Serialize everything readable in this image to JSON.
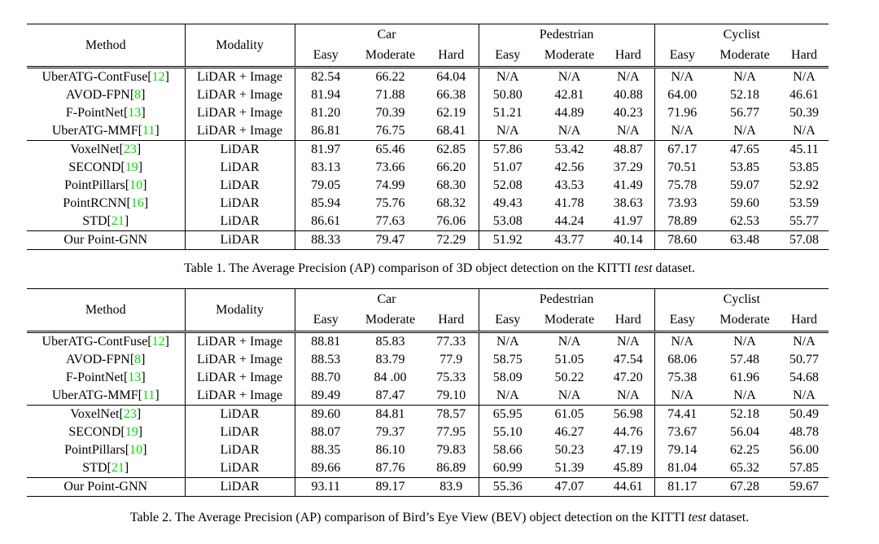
{
  "colors": {
    "citation_green": "#00dd00",
    "text": "#000000",
    "rule": "#000000"
  },
  "tables": [
    {
      "name": "3d-detection",
      "header": {
        "method": "Method",
        "modality": "Modality",
        "groups": [
          "Car",
          "Pedestrian",
          "Cyclist"
        ],
        "difficulties": [
          "Easy",
          "Moderate",
          "Hard"
        ]
      },
      "sections": [
        {
          "rows": [
            {
              "method": "UberATG-ContFuse",
              "cite": "12",
              "modality": "LiDAR + Image",
              "values": [
                "82.54",
                "66.22",
                "64.04",
                "N/A",
                "N/A",
                "N/A",
                "N/A",
                "N/A",
                "N/A"
              ],
              "bold": [],
              "bold_method": false
            },
            {
              "method": "AVOD-FPN",
              "cite": "8",
              "modality": "LiDAR + Image",
              "values": [
                "81.94",
                "71.88",
                "66.38",
                "50.80",
                "42.81",
                "40.88",
                "64.00",
                "52.18",
                "46.61"
              ],
              "bold": [],
              "bold_method": false
            },
            {
              "method": "F-PointNet",
              "cite": "13",
              "modality": "LiDAR + Image",
              "values": [
                "81.20",
                "70.39",
                "62.19",
                "51.21",
                "44.89",
                "40.23",
                "71.96",
                "56.77",
                "50.39"
              ],
              "bold": [],
              "bold_method": false
            },
            {
              "method": "UberATG-MMF",
              "cite": "11",
              "modality": "LiDAR + Image",
              "values": [
                "86.81",
                "76.75",
                "68.41",
                "N/A",
                "N/A",
                "N/A",
                "N/A",
                "N/A",
                "N/A"
              ],
              "bold": [],
              "bold_method": false
            }
          ]
        },
        {
          "rows": [
            {
              "method": "VoxelNet",
              "cite": "23",
              "modality": "LiDAR",
              "values": [
                "81.97",
                "65.46",
                "62.85",
                "57.86",
                "53.42",
                "48.87",
                "67.17",
                "47.65",
                "45.11"
              ],
              "bold": [
                3,
                4,
                5
              ],
              "bold_method": false
            },
            {
              "method": "SECOND",
              "cite": "19",
              "modality": "LiDAR",
              "values": [
                "83.13",
                "73.66",
                "66.20",
                "51.07",
                "42.56",
                "37.29",
                "70.51",
                "53.85",
                "53.85"
              ],
              "bold": [],
              "bold_method": false
            },
            {
              "method": "PointPillars",
              "cite": "10",
              "modality": "LiDAR",
              "values": [
                "79.05",
                "74.99",
                "68.30",
                "52.08",
                "43.53",
                "41.49",
                "75.78",
                "59.07",
                "52.92"
              ],
              "bold": [],
              "bold_method": false
            },
            {
              "method": "PointRCNN",
              "cite": "16",
              "modality": "LiDAR",
              "values": [
                "85.94",
                "75.76",
                "68.32",
                "49.43",
                "41.78",
                "38.63",
                "73.93",
                "59.60",
                "53.59"
              ],
              "bold": [],
              "bold_method": false
            },
            {
              "method": "STD",
              "cite": "21",
              "modality": "LiDAR",
              "values": [
                "86.61",
                "77.63",
                "76.06",
                "53.08",
                "44.24",
                "41.97",
                "78.89",
                "62.53",
                "55.77"
              ],
              "bold": [
                2,
                6
              ],
              "bold_method": false
            }
          ]
        },
        {
          "rows": [
            {
              "method": "Our Point-GNN",
              "cite": null,
              "modality": "LiDAR",
              "values": [
                "88.33",
                "79.47",
                "72.29",
                "51.92",
                "43.77",
                "40.14",
                "78.60",
                "63.48",
                "57.08"
              ],
              "bold": [
                0,
                1,
                7,
                8
              ],
              "bold_method": true
            }
          ]
        }
      ],
      "caption": {
        "prefix": "Table 1. The Average Precision (AP) comparison of 3D object detection on the KITTI ",
        "emph": "test",
        "suffix": " dataset."
      }
    },
    {
      "name": "bev-detection",
      "header": {
        "method": "Method",
        "modality": "Modality",
        "groups": [
          "Car",
          "Pedestrian",
          "Cyclist"
        ],
        "difficulties": [
          "Easy",
          "Moderate",
          "Hard"
        ]
      },
      "sections": [
        {
          "rows": [
            {
              "method": "UberATG-ContFuse",
              "cite": "12",
              "modality": "LiDAR + Image",
              "values": [
                "88.81",
                "85.83",
                "77.33",
                "N/A",
                "N/A",
                "N/A",
                "N/A",
                "N/A",
                "N/A"
              ],
              "bold": [],
              "bold_method": false
            },
            {
              "method": "AVOD-FPN",
              "cite": "8",
              "modality": "LiDAR + Image",
              "values": [
                "88.53",
                "83.79",
                "77.9",
                "58.75",
                "51.05",
                "47.54",
                "68.06",
                "57.48",
                "50.77"
              ],
              "bold": [],
              "bold_method": false
            },
            {
              "method": "F-PointNet",
              "cite": "13",
              "modality": "LiDAR + Image",
              "values": [
                "88.70",
                "84 .00",
                "75.33",
                "58.09",
                "50.22",
                "47.20",
                "75.38",
                "61.96",
                "54.68"
              ],
              "bold": [],
              "bold_method": false
            },
            {
              "method": "UberATG-MMF",
              "cite": "11",
              "modality": "LiDAR + Image",
              "values": [
                "89.49",
                "87.47",
                "79.10",
                "N/A",
                "N/A",
                "N/A",
                "N/A",
                "N/A",
                "N/A"
              ],
              "bold": [],
              "bold_method": false
            }
          ]
        },
        {
          "rows": [
            {
              "method": "VoxelNet",
              "cite": "23",
              "modality": "LiDAR",
              "values": [
                "89.60",
                "84.81",
                "78.57",
                "65.95",
                "61.05",
                "56.98",
                "74.41",
                "52.18",
                "50.49"
              ],
              "bold": [
                3,
                4,
                5
              ],
              "bold_method": false
            },
            {
              "method": "SECOND",
              "cite": "19",
              "modality": "LiDAR",
              "values": [
                "88.07",
                "79.37",
                "77.95",
                "55.10",
                "46.27",
                "44.76",
                "73.67",
                "56.04",
                "48.78"
              ],
              "bold": [],
              "bold_method": false
            },
            {
              "method": "PointPillars",
              "cite": "10",
              "modality": "LiDAR",
              "values": [
                "88.35",
                "86.10",
                "79.83",
                "58.66",
                "50.23",
                "47.19",
                "79.14",
                "62.25",
                "56.00"
              ],
              "bold": [],
              "bold_method": false
            },
            {
              "method": "STD",
              "cite": "21",
              "modality": "LiDAR",
              "values": [
                "89.66",
                "87.76",
                "86.89",
                "60.99",
                "51.39",
                "45.89",
                "81.04",
                "65.32",
                "57.85"
              ],
              "bold": [
                2
              ],
              "bold_method": false
            }
          ]
        },
        {
          "rows": [
            {
              "method": "Our Point-GNN",
              "cite": null,
              "modality": "LiDAR",
              "values": [
                "93.11",
                "89.17",
                "83.9",
                "55.36",
                "47.07",
                "44.61",
                "81.17",
                "67.28",
                "59.67"
              ],
              "bold": [
                0,
                1,
                6,
                7,
                8
              ],
              "bold_method": true
            }
          ]
        }
      ],
      "caption": {
        "prefix": "Table 2. The Average Precision (AP) comparison of Bird’s Eye View (BEV) object detection on the KITTI ",
        "emph": "test",
        "suffix": " dataset."
      }
    }
  ]
}
